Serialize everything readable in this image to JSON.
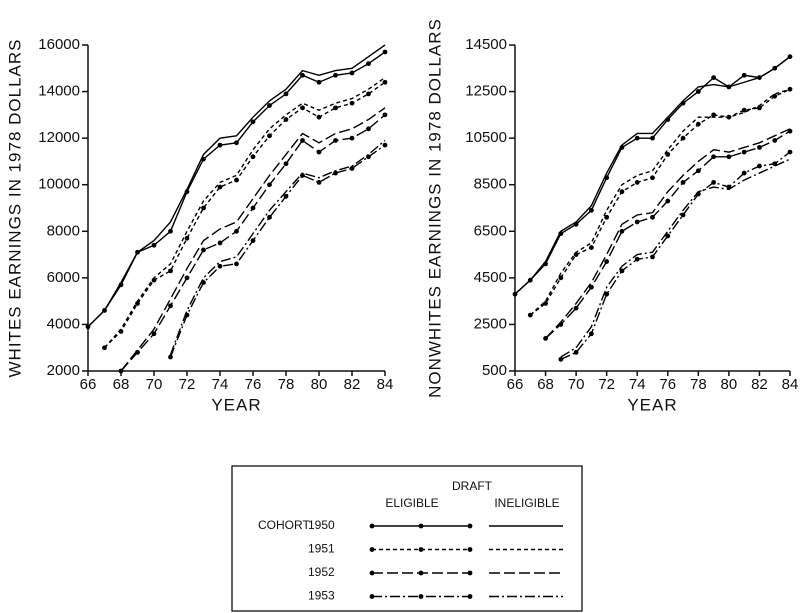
{
  "chart_data": [
    {
      "type": "line",
      "ylabel": "WHITES EARNINGS IN 1978 DOLLARS",
      "xlabel": "YEAR",
      "x": [
        66,
        67,
        68,
        69,
        70,
        71,
        72,
        73,
        74,
        75,
        76,
        77,
        78,
        79,
        80,
        81,
        82,
        83,
        84
      ],
      "xlim": [
        66,
        84
      ],
      "xticks": [
        66,
        68,
        70,
        72,
        74,
        76,
        78,
        80,
        82,
        84
      ],
      "ylim": [
        2000,
        16000
      ],
      "yticks": [
        2000,
        4000,
        6000,
        8000,
        10000,
        12000,
        14000,
        16000
      ],
      "series": [
        {
          "style": "solid",
          "markers": true,
          "color": "#000000",
          "values": [
            3900,
            4600,
            5700,
            7100,
            7400,
            8000,
            9700,
            11100,
            11700,
            11800,
            12700,
            13400,
            13900,
            14700,
            14400,
            14700,
            14800,
            15200,
            15700
          ]
        },
        {
          "style": "solid",
          "markers": false,
          "color": "#000000",
          "values": [
            3900,
            4600,
            5800,
            7100,
            7600,
            8400,
            9800,
            11300,
            12000,
            12100,
            12900,
            13600,
            14100,
            14900,
            14700,
            14900,
            15000,
            15500,
            16000
          ]
        },
        {
          "style": "dashed",
          "markers": true,
          "color": "#000000",
          "values": [
            null,
            3000,
            3700,
            4900,
            5900,
            6300,
            7700,
            9000,
            9900,
            10200,
            11200,
            12100,
            12800,
            13300,
            12900,
            13300,
            13500,
            13900,
            14400
          ]
        },
        {
          "style": "dashed",
          "markers": false,
          "color": "#000000",
          "values": [
            null,
            3000,
            3800,
            5000,
            6000,
            6600,
            8000,
            9300,
            10100,
            10400,
            11500,
            12400,
            13000,
            13500,
            13200,
            13500,
            13700,
            14100,
            14600
          ]
        },
        {
          "style": "longdash",
          "markers": true,
          "color": "#000000",
          "values": [
            null,
            null,
            2000,
            2800,
            3600,
            4800,
            6000,
            7200,
            7500,
            8000,
            9000,
            10000,
            10900,
            11900,
            11400,
            11900,
            12000,
            12400,
            13000
          ]
        },
        {
          "style": "longdash",
          "markers": false,
          "color": "#000000",
          "values": [
            null,
            null,
            2000,
            2900,
            3800,
            5100,
            6400,
            7600,
            8100,
            8400,
            9400,
            10400,
            11300,
            12200,
            11800,
            12200,
            12400,
            12800,
            13300
          ]
        },
        {
          "style": "dashdot",
          "markers": true,
          "color": "#000000",
          "values": [
            null,
            null,
            null,
            null,
            null,
            2600,
            4400,
            5800,
            6500,
            6600,
            7600,
            8600,
            9500,
            10400,
            10100,
            10500,
            10700,
            11200,
            11700
          ]
        },
        {
          "style": "dashdot",
          "markers": false,
          "color": "#000000",
          "values": [
            null,
            null,
            null,
            null,
            null,
            2700,
            4600,
            6000,
            6700,
            6900,
            7900,
            8900,
            9700,
            10500,
            10300,
            10600,
            10800,
            11300,
            11900
          ]
        }
      ]
    },
    {
      "type": "line",
      "ylabel": "NONWHITES EARNINGS IN 1978 DOLLARS",
      "xlabel": "YEAR",
      "x": [
        66,
        67,
        68,
        69,
        70,
        71,
        72,
        73,
        74,
        75,
        76,
        77,
        78,
        79,
        80,
        81,
        82,
        83,
        84
      ],
      "xlim": [
        66,
        84
      ],
      "xticks": [
        66,
        68,
        70,
        72,
        74,
        76,
        78,
        80,
        82,
        84
      ],
      "ylim": [
        500,
        14500
      ],
      "yticks": [
        500,
        2500,
        4500,
        6500,
        8500,
        10500,
        12500,
        14500
      ],
      "series": [
        {
          "style": "solid",
          "markers": true,
          "color": "#000000",
          "values": [
            3800,
            4400,
            5100,
            6400,
            6800,
            7400,
            8800,
            10100,
            10500,
            10500,
            11300,
            12000,
            12500,
            13100,
            12700,
            13200,
            13100,
            13500,
            14000
          ]
        },
        {
          "style": "solid",
          "markers": false,
          "color": "#000000",
          "values": [
            3800,
            4400,
            5200,
            6500,
            6900,
            7600,
            9000,
            10200,
            10700,
            10700,
            11400,
            12100,
            12700,
            12800,
            12700,
            12900,
            13100,
            13500,
            14000
          ]
        },
        {
          "style": "dashed",
          "markers": true,
          "color": "#000000",
          "values": [
            null,
            2900,
            3400,
            4500,
            5500,
            5800,
            7100,
            8200,
            8600,
            8800,
            9800,
            10500,
            11100,
            11500,
            11400,
            11700,
            11800,
            12300,
            12600
          ]
        },
        {
          "style": "dashed",
          "markers": false,
          "color": "#000000",
          "values": [
            null,
            2900,
            3500,
            4700,
            5600,
            6000,
            7400,
            8500,
            8900,
            9100,
            10000,
            10800,
            11400,
            11400,
            11400,
            11600,
            11900,
            12400,
            12600
          ]
        },
        {
          "style": "longdash",
          "markers": true,
          "color": "#000000",
          "values": [
            null,
            null,
            1900,
            2500,
            3200,
            4100,
            5200,
            6500,
            6900,
            7100,
            7800,
            8600,
            9100,
            9700,
            9700,
            9900,
            10100,
            10400,
            10800
          ]
        },
        {
          "style": "longdash",
          "markers": false,
          "color": "#000000",
          "values": [
            null,
            null,
            1900,
            2600,
            3400,
            4300,
            5500,
            6800,
            7200,
            7300,
            8200,
            8900,
            9500,
            10000,
            9900,
            10100,
            10300,
            10600,
            10900
          ]
        },
        {
          "style": "dashdot",
          "markers": true,
          "color": "#000000",
          "values": [
            null,
            null,
            null,
            1000,
            1300,
            2100,
            3800,
            4800,
            5300,
            5400,
            6300,
            7200,
            8100,
            8600,
            8400,
            9000,
            9300,
            9400,
            9900
          ]
        },
        {
          "style": "dashdot",
          "markers": false,
          "color": "#000000",
          "values": [
            null,
            null,
            null,
            1100,
            1500,
            2400,
            4100,
            5000,
            5500,
            5600,
            6500,
            7400,
            8200,
            8400,
            8300,
            8700,
            9000,
            9300,
            9600
          ]
        }
      ]
    }
  ],
  "legend": {
    "title": "DRAFT",
    "columns": [
      "ELIGIBLE",
      "INELIGIBLE"
    ],
    "row_label": "COHORT",
    "rows": [
      "1950",
      "1951",
      "1952",
      "1953"
    ]
  }
}
